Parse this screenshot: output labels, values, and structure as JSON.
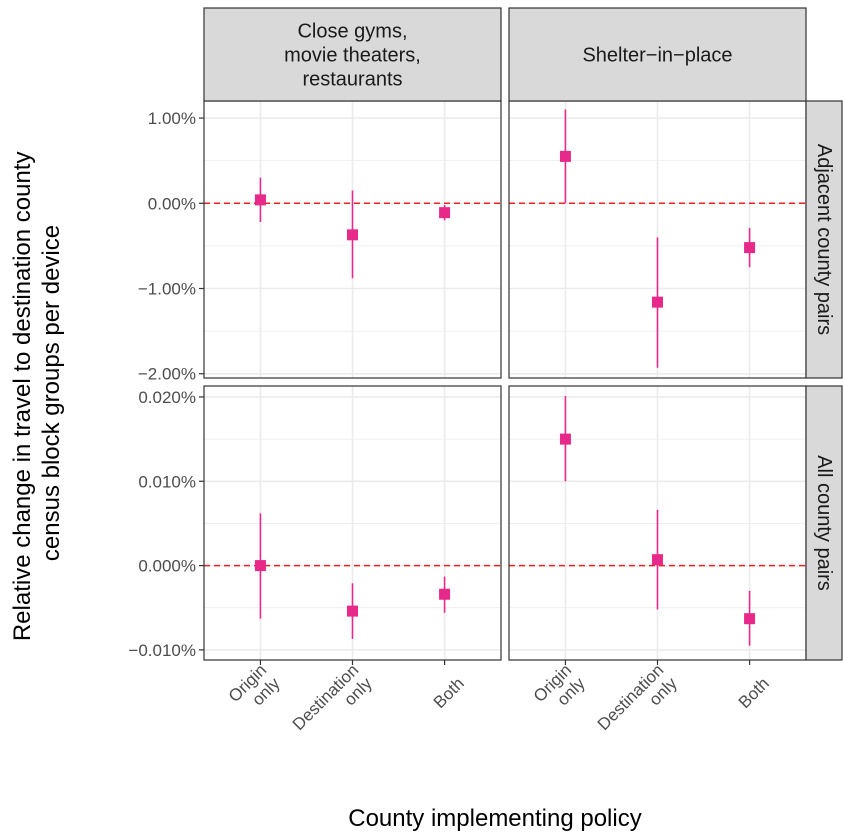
{
  "chart_data": {
    "type": "scatter",
    "subtype": "point-range facet grid",
    "xlabel": "County implementing policy",
    "ylabel_lines": [
      "Relative change in travel to destination county",
      "census block groups per device"
    ],
    "categories": [
      [
        "Origin",
        "only"
      ],
      [
        "Destination",
        "only"
      ],
      [
        "Both"
      ]
    ],
    "columns": [
      {
        "label_lines": [
          "Close gyms,",
          "movie theaters,",
          "restaurants"
        ]
      },
      {
        "label_lines": [
          "Shelter−in−place"
        ]
      }
    ],
    "rows": [
      {
        "label": "Adjacent county pairs",
        "ylim": [
          -2.05,
          1.2
        ],
        "ticks": [
          1.0,
          0.0,
          -1.0,
          -2.0
        ],
        "tick_labels": [
          "1.00%",
          "0.00%",
          "−1.00%",
          "−2.00%"
        ],
        "panels": [
          [
            {
              "y": 0.04,
              "low": -0.22,
              "high": 0.3
            },
            {
              "y": -0.37,
              "low": -0.88,
              "high": 0.15
            },
            {
              "y": -0.11,
              "low": -0.2,
              "high": -0.02
            }
          ],
          [
            {
              "y": 0.55,
              "low": 0.0,
              "high": 1.1
            },
            {
              "y": -1.16,
              "low": -1.93,
              "high": -0.4
            },
            {
              "y": -0.52,
              "low": -0.75,
              "high": -0.29
            }
          ]
        ]
      },
      {
        "label": "All county pairs",
        "ylim": [
          -0.0112,
          0.0213
        ],
        "ticks": [
          0.02,
          0.01,
          0.0,
          -0.01
        ],
        "tick_labels": [
          "0.020%",
          "0.010%",
          "0.000%",
          "−0.010%"
        ],
        "panels": [
          [
            {
              "y": 0.0,
              "low": -0.0063,
              "high": 0.0062
            },
            {
              "y": -0.0054,
              "low": -0.0087,
              "high": -0.0021
            },
            {
              "y": -0.0034,
              "low": -0.0056,
              "high": -0.0013
            }
          ],
          [
            {
              "y": 0.015,
              "low": 0.01,
              "high": 0.0201
            },
            {
              "y": 0.0007,
              "low": -0.0052,
              "high": 0.0066
            },
            {
              "y": -0.0063,
              "low": -0.0095,
              "high": -0.003
            }
          ]
        ]
      }
    ],
    "reference_line": 0,
    "colors": {
      "point": "#e7298a",
      "reference": "#ee2222",
      "strip_fill": "#d9d9d9",
      "grid": "#ebebeb",
      "frame": "#333333",
      "text": "#1a1a1a",
      "tick_text": "#4d4d4d"
    },
    "grid": true
  }
}
